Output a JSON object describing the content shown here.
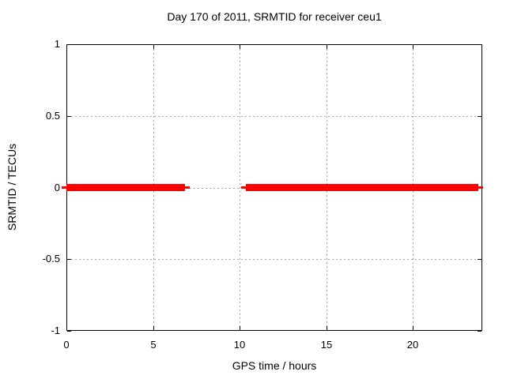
{
  "window": {
    "background": "#ffffff",
    "text_color": "#000000"
  },
  "chart_data": {
    "type": "line",
    "title": "Day 170 of 2011, SRMTID for receiver ceu1",
    "xlabel": "GPS time / hours",
    "ylabel": "SRMTID / TECUs",
    "xlim": [
      0,
      24
    ],
    "ylim": [
      -1,
      1
    ],
    "xticks": {
      "values": [
        0,
        5,
        10,
        15,
        20
      ],
      "labels": [
        "0",
        "5",
        "10",
        "15",
        "20"
      ]
    },
    "yticks": {
      "values": [
        1,
        0.5,
        0,
        -0.5,
        -1
      ],
      "labels": [
        "1",
        "0.5",
        "0",
        "-0.5",
        "-1"
      ]
    },
    "grid": true,
    "grid_color": "#a6a6a6",
    "axis_color": "#000000",
    "legend": "none",
    "series": [
      {
        "color": "#ff0000",
        "y_value": 0,
        "line_style": "thick horizontal line with thin end tips",
        "segments": [
          {
            "start": -0.27,
            "thick_start": 0,
            "thick_end": 6.85,
            "end": 7.12
          },
          {
            "start": 10.08,
            "thick_start": 10.36,
            "thick_end": 23.77,
            "end": 24.02
          }
        ]
      }
    ]
  }
}
